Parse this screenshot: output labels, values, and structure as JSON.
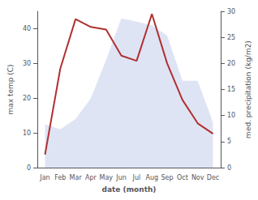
{
  "chart_data": {
    "type": "line",
    "xlabel": "date (month)",
    "ylabel": "max temp (C)",
    "y2label": "med. precipitation (kg/m2)",
    "categories": [
      "Jan",
      "Feb",
      "Mar",
      "Apr",
      "May",
      "Jun",
      "Jul",
      "Aug",
      "Sep",
      "Oct",
      "Nov",
      "Dec"
    ],
    "series": [
      {
        "type": "area",
        "color": "#b8c4e8",
        "values": [
          12.5,
          11.0,
          14.0,
          20.0,
          31.0,
          43.0,
          42.0,
          41.0,
          38.0,
          25.0,
          25.0,
          13.0
        ]
      },
      {
        "type": "line",
        "color": "#b03030",
        "axis": "y2",
        "values": [
          2.5,
          19.0,
          28.5,
          27.0,
          26.5,
          21.5,
          20.5,
          29.5,
          20.0,
          13.0,
          8.5,
          6.5
        ]
      }
    ],
    "ylim": [
      0,
      45
    ],
    "yticks": [
      0,
      10,
      20,
      30,
      40
    ],
    "y2lim": [
      0,
      30
    ],
    "y2ticks": [
      0,
      5,
      10,
      15,
      20,
      25,
      30
    ],
    "grid": false
  }
}
